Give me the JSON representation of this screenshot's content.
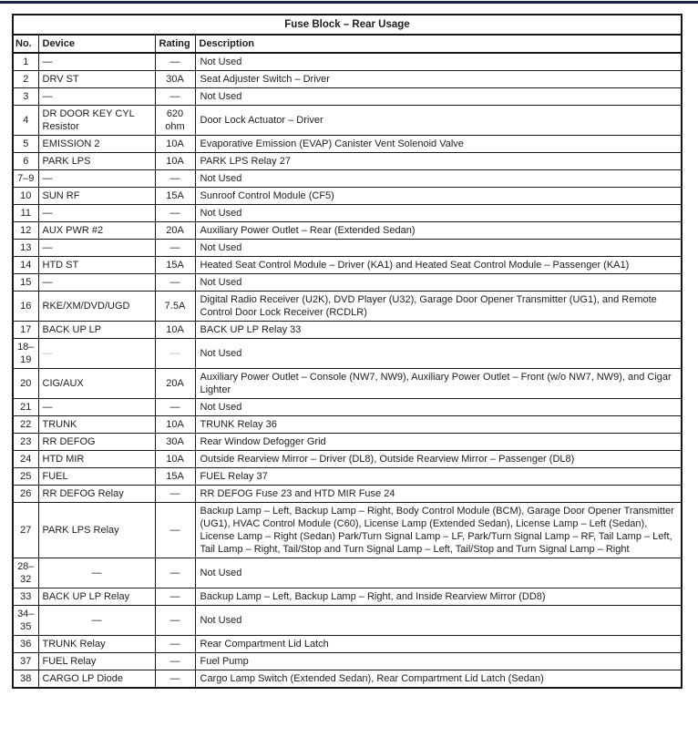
{
  "page": {
    "top_rule_color": "#1d2440",
    "background_color": "#ffffff",
    "border_color": "#1b1b1b"
  },
  "table": {
    "title": "Fuse Block – Rear Usage",
    "columns": [
      "No.",
      "Device",
      "Rating",
      "Description"
    ],
    "rows": [
      {
        "no": "1",
        "device": "—",
        "rating": "—",
        "description": "Not Used"
      },
      {
        "no": "2",
        "device": "DRV ST",
        "rating": "30A",
        "description": "Seat Adjuster Switch – Driver"
      },
      {
        "no": "3",
        "device": "—",
        "rating": "—",
        "description": "Not Used"
      },
      {
        "no": "4",
        "device": "DR DOOR KEY CYL Resistor",
        "rating": "620 ohm",
        "description": "Door Lock Actuator – Driver"
      },
      {
        "no": "5",
        "device": "EMISSION 2",
        "rating": "10A",
        "description": "Evaporative Emission (EVAP) Canister Vent Solenoid Valve"
      },
      {
        "no": "6",
        "device": "PARK LPS",
        "rating": "10A",
        "description": "PARK LPS Relay 27"
      },
      {
        "no": "7–9",
        "device": "—",
        "rating": "—",
        "description": "Not Used"
      },
      {
        "no": "10",
        "device": "SUN RF",
        "rating": "15A",
        "description": "Sunroof Control Module (CF5)"
      },
      {
        "no": "11",
        "device": "—",
        "rating": "—",
        "description": "Not Used"
      },
      {
        "no": "12",
        "device": "AUX PWR #2",
        "rating": "20A",
        "description": "Auxiliary Power Outlet – Rear (Extended Sedan)"
      },
      {
        "no": "13",
        "device": "—",
        "rating": "—",
        "description": "Not Used"
      },
      {
        "no": "14",
        "device": "HTD ST",
        "rating": "15A",
        "description": "Heated Seat Control Module – Driver (KA1) and Heated Seat Control Module – Passenger (KA1)"
      },
      {
        "no": "15",
        "device": "—",
        "rating": "—",
        "description": "Not Used"
      },
      {
        "no": "16",
        "device": "RKE/XM/DVD/UGD",
        "rating": "7.5A",
        "description": "Digital Radio Receiver (U2K), DVD Player (U32), Garage Door Opener Transmitter (UG1), and Remote Control Door Lock Receiver (RCDLR)"
      },
      {
        "no": "17",
        "device": "BACK UP LP",
        "rating": "10A",
        "description": "BACK UP LP Relay 33"
      },
      {
        "no": "18–\n19",
        "device": "—",
        "rating": "—",
        "description": "Not Used",
        "faint": true
      },
      {
        "no": "20",
        "device": "CIG/AUX",
        "rating": "20A",
        "description": "Auxiliary Power Outlet – Console (NW7, NW9), Auxiliary Power Outlet – Front (w/o NW7, NW9), and Cigar Lighter"
      },
      {
        "no": "21",
        "device": "—",
        "rating": "—",
        "description": "Not Used"
      },
      {
        "no": "22",
        "device": "TRUNK",
        "rating": "10A",
        "description": "TRUNK Relay 36"
      },
      {
        "no": "23",
        "device": "RR DEFOG",
        "rating": "30A",
        "description": "Rear Window Defogger Grid"
      },
      {
        "no": "24",
        "device": "HTD MIR",
        "rating": "10A",
        "description": "Outside Rearview Mirror – Driver (DL8), Outside Rearview Mirror – Passenger (DL8)"
      },
      {
        "no": "25",
        "device": "FUEL",
        "rating": "15A",
        "description": "FUEL Relay 37"
      },
      {
        "no": "26",
        "device": "RR DEFOG Relay",
        "rating": "—",
        "description": "RR DEFOG Fuse 23 and HTD MIR Fuse 24"
      },
      {
        "no": "27",
        "device": "PARK LPS Relay",
        "rating": "—",
        "description": "Backup Lamp – Left, Backup Lamp – Right, Body Control Module (BCM), Garage Door Opener Transmitter (UG1), HVAC Control Module (C60), License Lamp (Extended Sedan), License Lamp – Left (Sedan), License Lamp – Right (Sedan) Park/Turn Signal Lamp – LF, Park/Turn Signal Lamp – RF, Tail Lamp – Left, Tail Lamp – Right, Tail/Stop and Turn Signal Lamp – Left, Tail/Stop and Turn Signal Lamp – Right"
      },
      {
        "no": "28–\n32",
        "device": "—",
        "rating": "—",
        "description": "Not Used",
        "device_center": true
      },
      {
        "no": "33",
        "device": "BACK UP LP Relay",
        "rating": "—",
        "description": "Backup Lamp – Left, Backup Lamp – Right, and Inside Rearview Mirror (DD8)"
      },
      {
        "no": "34–\n35",
        "device": "—",
        "rating": "—",
        "description": "Not Used",
        "device_center": true
      },
      {
        "no": "36",
        "device": "TRUNK Relay",
        "rating": "—",
        "description": "Rear Compartment Lid Latch"
      },
      {
        "no": "37",
        "device": "FUEL Relay",
        "rating": "—",
        "description": "Fuel Pump"
      },
      {
        "no": "38",
        "device": "CARGO LP Diode",
        "rating": "—",
        "description": "Cargo Lamp Switch (Extended Sedan), Rear Compartment Lid Latch (Sedan)"
      }
    ]
  }
}
